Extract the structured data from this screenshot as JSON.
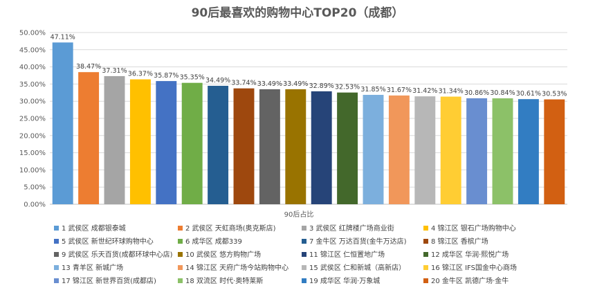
{
  "chart_data": {
    "type": "bar",
    "title": "90后最喜欢的购物中心TOP20（成都）",
    "xlabel": "90后占比",
    "ylabel": "",
    "ylim": [
      0,
      50
    ],
    "ytick_step": 5,
    "ytick_labels": [
      "0.00%",
      "5.00%",
      "10.00%",
      "15.00%",
      "20.00%",
      "25.00%",
      "30.00%",
      "35.00%",
      "40.00%",
      "45.00%",
      "50.00%"
    ],
    "grid": true,
    "legend_position": "bottom",
    "series": [
      {
        "name": "1 武侯区 成都银泰城",
        "value": 47.11,
        "label": "47.11%",
        "color": "#5B9BD5"
      },
      {
        "name": "2 武侯区 天虹商场(奥克斯店)",
        "value": 38.47,
        "label": "38.47%",
        "color": "#ED7D31"
      },
      {
        "name": "3 武侯区 红牌楼广场商业街",
        "value": 37.31,
        "label": "37.31%",
        "color": "#A5A5A5"
      },
      {
        "name": "4 锦江区 银石广场购物中心",
        "value": 36.37,
        "label": "36.37%",
        "color": "#FFC000"
      },
      {
        "name": "5 武侯区 新世纪环球购物中心",
        "value": 35.87,
        "label": "35.87%",
        "color": "#4472C4"
      },
      {
        "name": "6 成华区 成都339",
        "value": 35.35,
        "label": "35.35%",
        "color": "#70AD47"
      },
      {
        "name": "7 金牛区 万达百货(金牛万达店)",
        "value": 34.49,
        "label": "34.49%",
        "color": "#255E91"
      },
      {
        "name": "8 锦江区 香槟广场",
        "value": 33.74,
        "label": "33.74%",
        "color": "#9E480E"
      },
      {
        "name": "9 武侯区 乐天百货(成都环球中心店)",
        "value": 33.49,
        "label": "33.49%",
        "color": "#636363"
      },
      {
        "name": "10 武侯区 悠方购物广场",
        "value": 33.49,
        "label": "33.49%",
        "color": "#997300"
      },
      {
        "name": "11 锦江区 仁恒置地广场",
        "value": 32.89,
        "label": "32.89%",
        "color": "#264478"
      },
      {
        "name": "12 成华区 华润·熙悦广场",
        "value": 32.53,
        "label": "32.53%",
        "color": "#43682B"
      },
      {
        "name": "13 青羊区 新城广场",
        "value": 31.85,
        "label": "31.85%",
        "color": "#7CAFDD"
      },
      {
        "name": "14 锦江区 天府广场今站购物中心",
        "value": 31.67,
        "label": "31.67%",
        "color": "#F1975A"
      },
      {
        "name": "15 武侯区 仁和新城（高新店）",
        "value": 31.42,
        "label": "31.42%",
        "color": "#B7B7B7"
      },
      {
        "name": "16 锦江区 IFS国金中心商场",
        "value": 31.34,
        "label": "31.34%",
        "color": "#FFCD33"
      },
      {
        "name": "17 锦江区 新世界百货(成都店)",
        "value": 30.86,
        "label": "30.86%",
        "color": "#698ED0"
      },
      {
        "name": "18 双流区 时代·奥特莱斯",
        "value": 30.84,
        "label": "30.84%",
        "color": "#8CC168"
      },
      {
        "name": "19 成华区 华润·万象城",
        "value": 30.61,
        "label": "30.61%",
        "color": "#327DC2"
      },
      {
        "name": "20 金牛区 凯德广场·金牛",
        "value": 30.53,
        "label": "30.53%",
        "color": "#D26012"
      }
    ]
  }
}
